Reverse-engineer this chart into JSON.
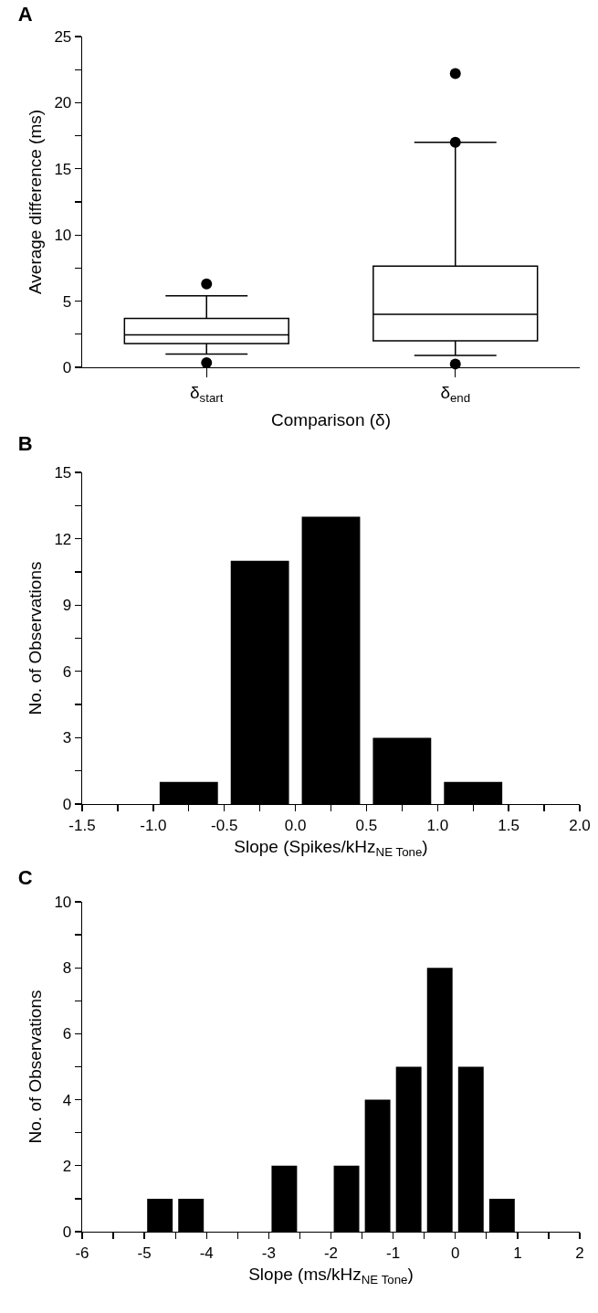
{
  "chart_data": [
    {
      "type": "box",
      "title": "A",
      "categories": [
        "δ$_{start}$",
        "δ$_{end}$"
      ],
      "color": "#000000",
      "xlabel": "Comparison (δ)",
      "ylabel": "Average difference (ms)",
      "ylim": [
        0,
        25
      ],
      "yticks": [
        0,
        {
          "value": 2.5,
          "label": null
        },
        5,
        {
          "value": 7.5,
          "label": null
        },
        10,
        {
          "value": 12.5,
          "label": null
        },
        15,
        {
          "value": 17.5,
          "label": null
        },
        20,
        {
          "value": 22.5,
          "label": null
        },
        25
      ],
      "boxes": [
        {
          "low": 1.0,
          "q1": 1.8,
          "median": 2.45,
          "q3": 3.7,
          "high": 5.4,
          "outliers": [
            6.3,
            0.35
          ]
        },
        {
          "low": 0.9,
          "q1": 2.0,
          "median": 4.0,
          "q3": 7.65,
          "high": 17.0,
          "outliers": [
            22.2,
            17.0,
            0.25
          ]
        }
      ]
    },
    {
      "type": "histogram",
      "title": "B",
      "color": "#000000",
      "xlabel": "Slope (Spikes/kHz$_{NE Tone}$)",
      "ylabel": "No. of Observations",
      "bins": [
        -1.0,
        -0.5,
        0.0,
        0.5,
        1.0,
        1.5
      ],
      "values": [
        1,
        11,
        13,
        3,
        1
      ],
      "xlim": [
        -1.5,
        2.0
      ],
      "xticks": [
        {
          "value": -1.5,
          "label": "-1.5"
        },
        {
          "value": -1.25,
          "label": null
        },
        {
          "value": -1.0,
          "label": "-1.0"
        },
        {
          "value": -0.75,
          "label": null
        },
        {
          "value": -0.5,
          "label": "-0.5"
        },
        {
          "value": -0.25,
          "label": null
        },
        {
          "value": 0,
          "label": "0.0"
        },
        {
          "value": 0.25,
          "label": null
        },
        {
          "value": 0.5,
          "label": "0.5"
        },
        {
          "value": 0.75,
          "label": null
        },
        {
          "value": 1.0,
          "label": "1.0"
        },
        {
          "value": 1.25,
          "label": null
        },
        {
          "value": 1.5,
          "label": "1.5"
        },
        {
          "value": 1.75,
          "label": null
        },
        {
          "value": 2.0,
          "label": "2.0"
        }
      ],
      "ylim": [
        0,
        15
      ],
      "yticks": [
        0,
        {
          "value": 1.5,
          "label": null
        },
        3,
        {
          "value": 4.5,
          "label": null
        },
        6,
        {
          "value": 7.5,
          "label": null
        },
        9,
        {
          "value": 10.5,
          "label": null
        },
        12,
        {
          "value": 13.5,
          "label": null
        },
        15
      ]
    },
    {
      "type": "histogram",
      "title": "C",
      "color": "#000000",
      "xlabel": "Slope (ms/kHz$_{NE Tone}$)",
      "ylabel": "No. of Observations",
      "bins": [
        -5.0,
        -4.5,
        -4.0,
        -3.5,
        -3.0,
        -2.5,
        -2.0,
        -1.5,
        -1.0,
        -0.5,
        0.0,
        0.5,
        1.0
      ],
      "values": [
        1,
        1,
        0,
        0,
        2,
        0,
        2,
        4,
        5,
        8,
        5,
        1
      ],
      "xlim": [
        -6,
        2
      ],
      "xticks": [
        -6,
        {
          "value": -5.5,
          "label": null
        },
        -5,
        {
          "value": -4.5,
          "label": null
        },
        -4,
        {
          "value": -3.5,
          "label": null
        },
        -3,
        {
          "value": -2.5,
          "label": null
        },
        -2,
        {
          "value": -1.5,
          "label": null
        },
        -1,
        {
          "value": -0.5,
          "label": null
        },
        0,
        {
          "value": 0.5,
          "label": null
        },
        1,
        {
          "value": 1.5,
          "label": null
        },
        2
      ],
      "ylim": [
        0,
        10
      ],
      "yticks": [
        0,
        {
          "value": 1,
          "label": null
        },
        2,
        {
          "value": 3,
          "label": null
        },
        4,
        {
          "value": 5,
          "label": null
        },
        6,
        {
          "value": 7,
          "label": null
        },
        8,
        {
          "value": 9,
          "label": null
        },
        10
      ]
    }
  ]
}
